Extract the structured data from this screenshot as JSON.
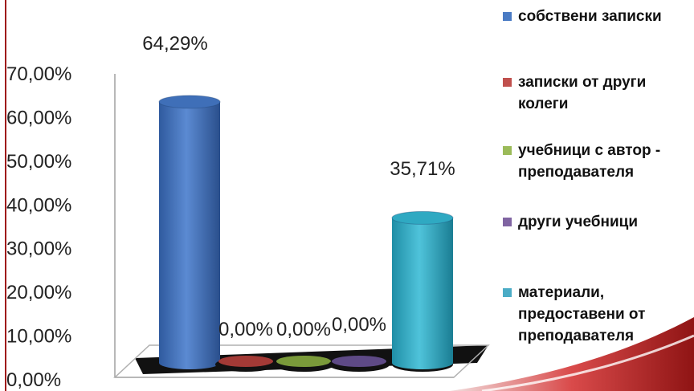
{
  "chart_data": {
    "type": "bar",
    "title": "",
    "xlabel": "",
    "ylabel": "",
    "ylim": [
      0,
      0.7
    ],
    "y_tick_labels": [
      "0,00%",
      "10,00%",
      "20,00%",
      "30,00%",
      "40,00%",
      "50,00%",
      "60,00%",
      "70,00%"
    ],
    "legend_position": "right",
    "grid": false,
    "series": [
      {
        "name": "собствени записки",
        "value": 0.6429,
        "label": "64,29%",
        "color": "#3f6fb8"
      },
      {
        "name": "записки от други колеги",
        "value": 0.0,
        "label": "0,00%",
        "color": "#a33a36"
      },
      {
        "name": "учебници с автор - преподавателя",
        "value": 0.0,
        "label": "0,00%",
        "color": "#7a9a3a"
      },
      {
        "name": "други учебници",
        "value": 0.0,
        "label": "0,00%",
        "color": "#5e4a86"
      },
      {
        "name": "материали, предоставени от преподавателя",
        "value": 0.3571,
        "label": "35,71%",
        "color": "#2fa9c2"
      }
    ]
  },
  "legend": {
    "items": [
      {
        "lines": [
          "собствени записки"
        ],
        "color": "#4a7bc4"
      },
      {
        "lines": [
          "записки от други",
          "колеги"
        ],
        "color": "#c0504d"
      },
      {
        "lines": [
          "учебници с автор -",
          "преподавателя"
        ],
        "color": "#9bbb59"
      },
      {
        "lines": [
          "други учебници"
        ],
        "color": "#8064a2"
      },
      {
        "lines": [
          "материали,",
          "предоставени от",
          "преподавателя"
        ],
        "color": "#4bacc6"
      }
    ]
  }
}
